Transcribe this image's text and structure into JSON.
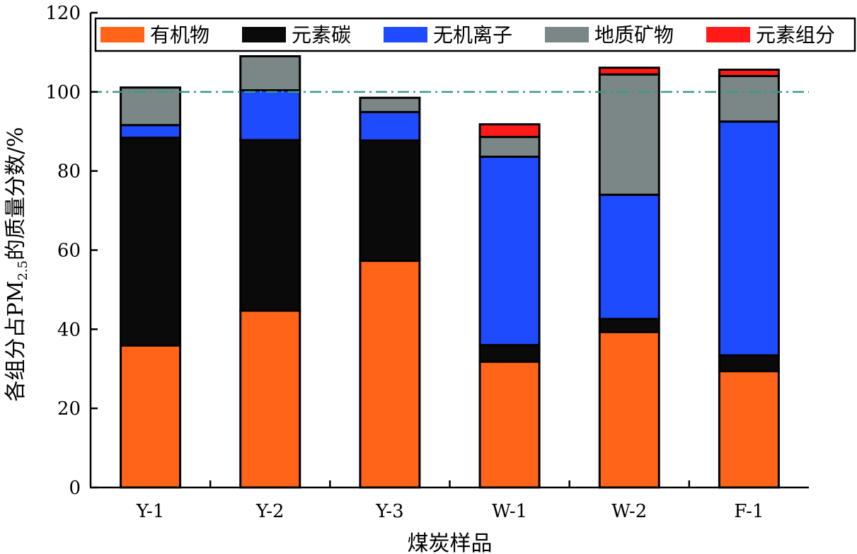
{
  "chart_data": {
    "type": "bar",
    "stacked": true,
    "title": "",
    "xlabel": "煤炭样品",
    "ylabel": "各组分占PM",
    "ylabel_sub": "2.5",
    "ylabel_suffix": "的质量分数/%",
    "ylim": [
      0,
      120
    ],
    "yticks": [
      0,
      20,
      40,
      60,
      80,
      100,
      120
    ],
    "categories": [
      "Y-1",
      "Y-2",
      "Y-3",
      "W-1",
      "W-2",
      "F-1"
    ],
    "reference_line": {
      "y": 100,
      "style": "dash-dot",
      "color": "#3a9a86"
    },
    "grid": false,
    "legend_position": "top",
    "series": [
      {
        "name": "有机物",
        "color": "#ff6419",
        "values": [
          35.9,
          44.7,
          57.3,
          31.8,
          39.3,
          29.4
        ]
      },
      {
        "name": "元素碳",
        "color": "#0a0a0a",
        "values": [
          52.5,
          43.1,
          30.4,
          4.2,
          3.3,
          4.0
        ]
      },
      {
        "name": "无机离子",
        "color": "#1f4bff",
        "values": [
          3.2,
          12.6,
          7.2,
          47.6,
          31.4,
          59.1
        ]
      },
      {
        "name": "地质矿物",
        "color": "#7b8686",
        "values": [
          9.5,
          8.6,
          3.6,
          5.0,
          30.4,
          11.5
        ]
      },
      {
        "name": "元素组分",
        "color": "#ff1a1a",
        "values": [
          0.0,
          0.0,
          0.0,
          3.2,
          1.7,
          1.6
        ]
      }
    ]
  }
}
